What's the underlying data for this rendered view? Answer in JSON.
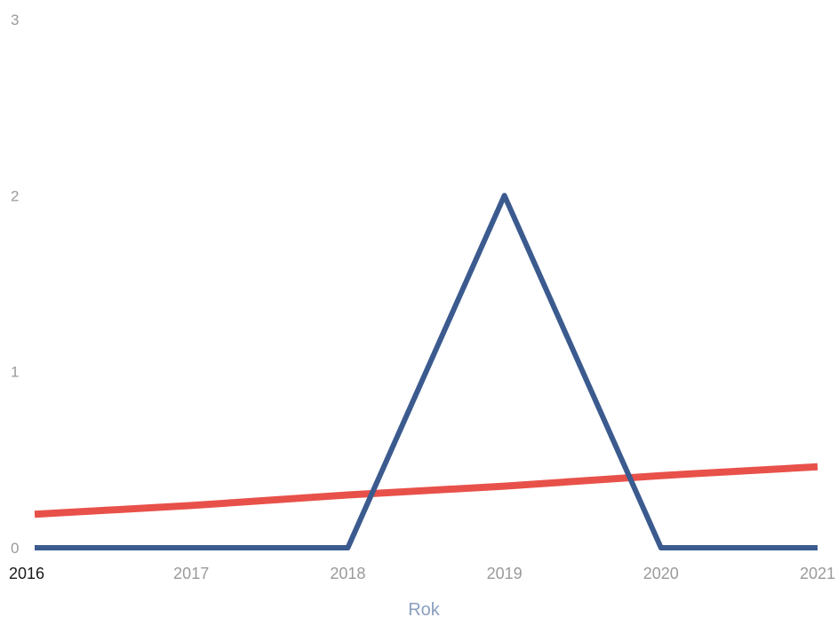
{
  "chart_data": {
    "type": "line",
    "title": "",
    "xlabel": "Rok",
    "ylabel": "",
    "x": [
      2016,
      2017,
      2018,
      2019,
      2020,
      2021
    ],
    "x_tick_labels": [
      "2016",
      "2017",
      "2018",
      "2019",
      "2020",
      "2021"
    ],
    "y_tick_labels": [
      "0",
      "1",
      "2",
      "3"
    ],
    "ylim": [
      0,
      3
    ],
    "xlim": [
      2016,
      2021
    ],
    "grid": false,
    "legend": "none",
    "series": [
      {
        "values": [
          0,
          0,
          0,
          2,
          0,
          0
        ],
        "color": "#3b5b8f"
      },
      {
        "values": [
          0.19,
          0.24,
          0.3,
          0.35,
          0.41,
          0.46
        ],
        "color": "#e8514a"
      }
    ]
  }
}
